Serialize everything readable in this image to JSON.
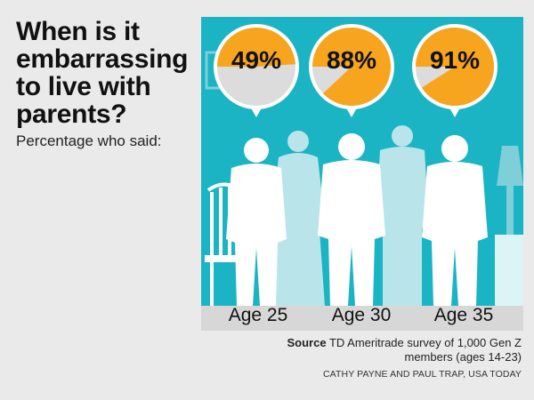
{
  "title": "When is it embarrassing to live with parents?",
  "subtitle": "Percentage who said:",
  "chart_data": {
    "type": "pie",
    "title": "When is it embarrassing to live with parents?",
    "subtitle": "Percentage who said:",
    "categories": [
      "Age 25",
      "Age 30",
      "Age 35"
    ],
    "values": [
      49,
      88,
      91
    ],
    "labels": [
      "49%",
      "88%",
      "91%"
    ],
    "unit": "%",
    "colors": {
      "filled": "#f7a51f",
      "remainder": "#dcdcdc",
      "background": "#1ab4c4",
      "silhouette_front": "#ffffff",
      "silhouette_back": "#b9e4ea"
    }
  },
  "source": {
    "label": "Source",
    "text": "TD Ameritrade survey of 1,000 Gen Z members (ages 14-23)"
  },
  "credit": "CATHY PAYNE AND PAUL TRAP, USA TODAY"
}
